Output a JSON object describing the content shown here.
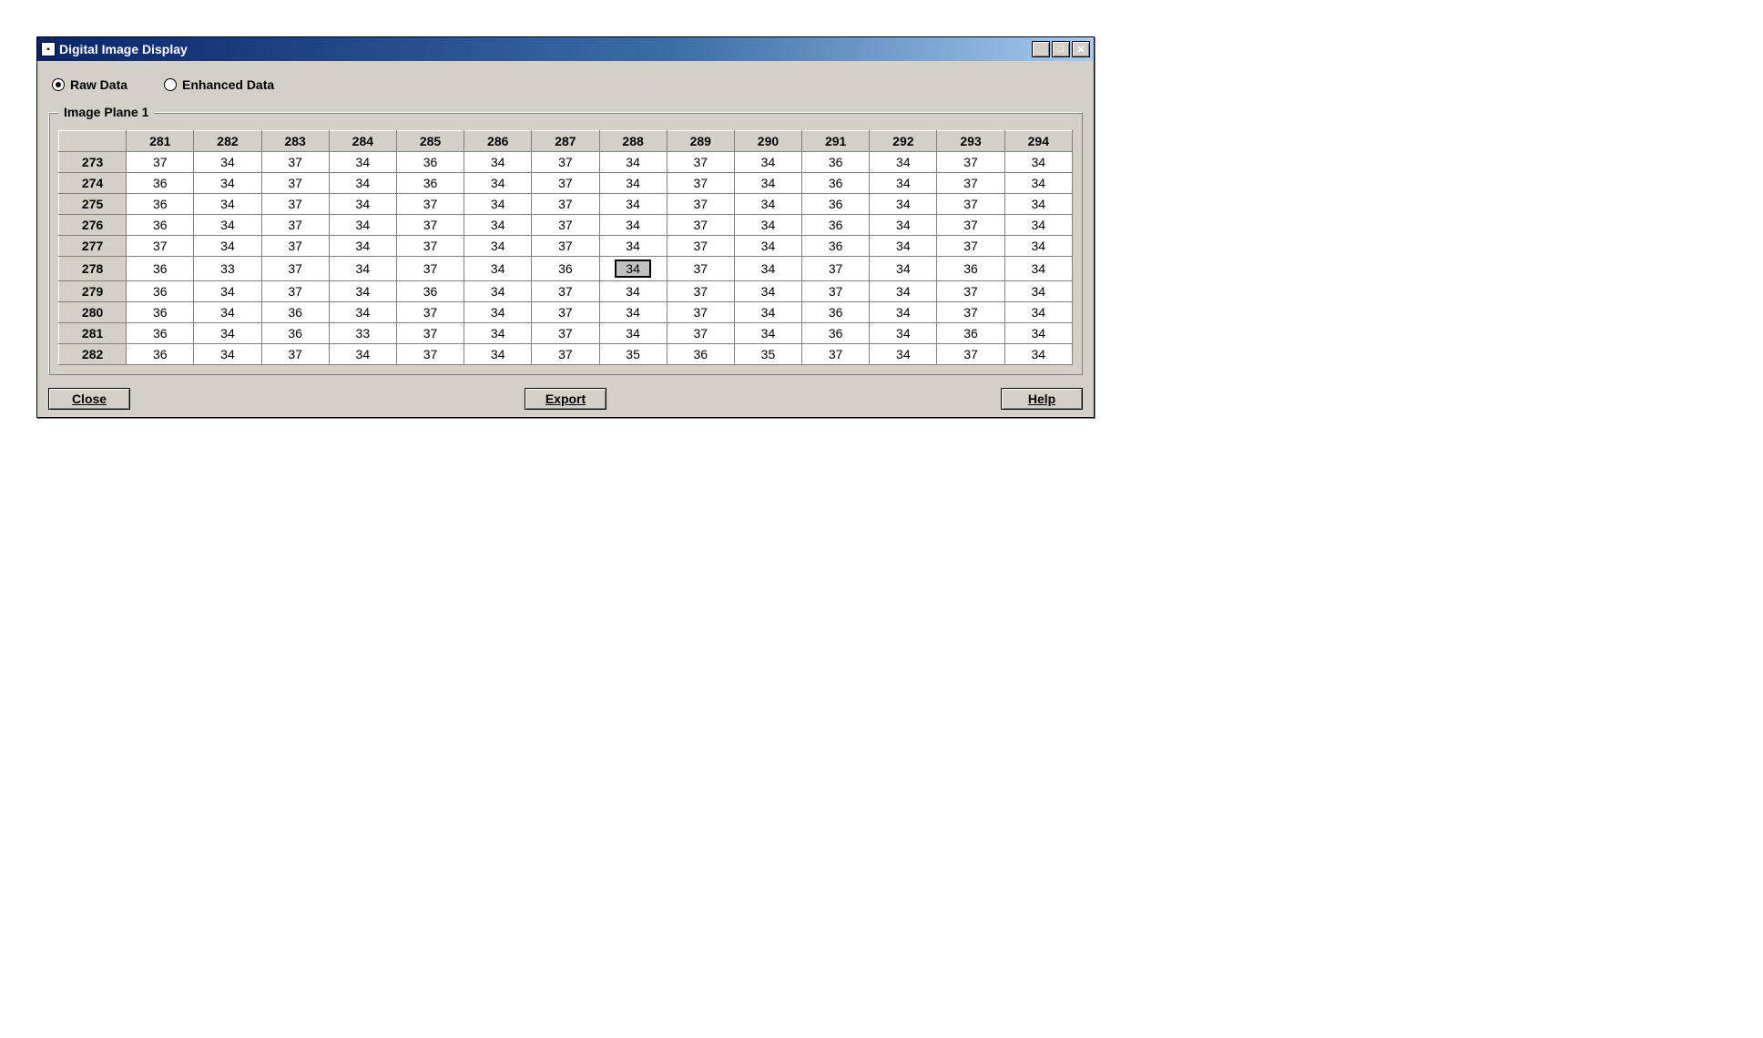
{
  "window": {
    "title": "Digital Image Display",
    "icon_glyph": "▪"
  },
  "radios": {
    "raw": {
      "label": "Raw Data",
      "checked": true
    },
    "enhanced": {
      "label": "Enhanced Data",
      "checked": false
    }
  },
  "group": {
    "legend": "Image Plane 1"
  },
  "table": {
    "col_headers": [
      "281",
      "282",
      "283",
      "284",
      "285",
      "286",
      "287",
      "288",
      "289",
      "290",
      "291",
      "292",
      "293",
      "294"
    ],
    "row_headers": [
      "273",
      "274",
      "275",
      "276",
      "277",
      "278",
      "279",
      "280",
      "281",
      "282"
    ],
    "rows": [
      [
        "37",
        "34",
        "37",
        "34",
        "36",
        "34",
        "37",
        "34",
        "37",
        "34",
        "36",
        "34",
        "37",
        "34"
      ],
      [
        "36",
        "34",
        "37",
        "34",
        "36",
        "34",
        "37",
        "34",
        "37",
        "34",
        "36",
        "34",
        "37",
        "34"
      ],
      [
        "36",
        "34",
        "37",
        "34",
        "37",
        "34",
        "37",
        "34",
        "37",
        "34",
        "36",
        "34",
        "37",
        "34"
      ],
      [
        "36",
        "34",
        "37",
        "34",
        "37",
        "34",
        "37",
        "34",
        "37",
        "34",
        "36",
        "34",
        "37",
        "34"
      ],
      [
        "37",
        "34",
        "37",
        "34",
        "37",
        "34",
        "37",
        "34",
        "37",
        "34",
        "36",
        "34",
        "37",
        "34"
      ],
      [
        "36",
        "33",
        "37",
        "34",
        "37",
        "34",
        "36",
        "34",
        "37",
        "34",
        "37",
        "34",
        "36",
        "34"
      ],
      [
        "36",
        "34",
        "37",
        "34",
        "36",
        "34",
        "37",
        "34",
        "37",
        "34",
        "37",
        "34",
        "37",
        "34"
      ],
      [
        "36",
        "34",
        "36",
        "34",
        "37",
        "34",
        "37",
        "34",
        "37",
        "34",
        "36",
        "34",
        "37",
        "34"
      ],
      [
        "36",
        "34",
        "36",
        "33",
        "37",
        "34",
        "37",
        "34",
        "37",
        "34",
        "36",
        "34",
        "36",
        "34"
      ],
      [
        "36",
        "34",
        "37",
        "34",
        "37",
        "34",
        "37",
        "35",
        "36",
        "35",
        "37",
        "34",
        "37",
        "34"
      ]
    ],
    "selected": {
      "row": 5,
      "col": 7
    }
  },
  "buttons": {
    "close": "Close",
    "export": "Export",
    "help": "Help"
  },
  "colors": {
    "window_bg": "#d4d0c8",
    "titlebar_from": "#0a246a",
    "titlebar_to": "#a6caf0",
    "grid_border": "#808080",
    "cell_bg": "#ffffff",
    "header_bg": "#d4d0c8",
    "text": "#000000"
  }
}
